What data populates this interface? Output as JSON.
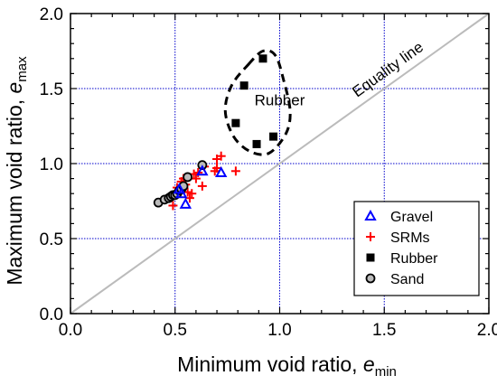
{
  "chart_data": {
    "type": "scatter",
    "xlabel": "Minimum void ratio, ",
    "xlabel_sub": "min",
    "xlabel_italic": "e",
    "ylabel": "Maximum void ratio, ",
    "ylabel_sub": "max",
    "ylabel_italic": "e",
    "xlim": [
      0.0,
      2.0
    ],
    "ylim": [
      0.0,
      2.0
    ],
    "xticks": [
      "0.0",
      "0.5",
      "1.0",
      "1.5",
      "2.0"
    ],
    "yticks": [
      "0.0",
      "0.5",
      "1.0",
      "1.5",
      "2.0"
    ],
    "xtick_values": [
      0.0,
      0.5,
      1.0,
      1.5,
      2.0
    ],
    "ytick_values": [
      0.0,
      0.5,
      1.0,
      1.5,
      2.0
    ],
    "grid": true,
    "grid_color": "#0000cc",
    "legend_position": "bottom-right",
    "equality_line": {
      "label": "Equality line",
      "color": "#bbbbbb",
      "from": [
        0,
        0
      ],
      "to": [
        2,
        2
      ]
    },
    "annotation": {
      "label": "Rubber",
      "at": [
        1.0,
        1.39
      ]
    },
    "series": [
      {
        "name": "Gravel",
        "marker": "open-triangle",
        "color": "#0000ff",
        "points": [
          [
            0.52,
            0.83
          ],
          [
            0.53,
            0.8
          ],
          [
            0.55,
            0.73
          ],
          [
            0.63,
            0.95
          ],
          [
            0.72,
            0.94
          ]
        ]
      },
      {
        "name": "SRMs",
        "marker": "plus",
        "color": "#ff0000",
        "points": [
          [
            0.49,
            0.72
          ],
          [
            0.5,
            0.79
          ],
          [
            0.51,
            0.84
          ],
          [
            0.53,
            0.88
          ],
          [
            0.54,
            0.9
          ],
          [
            0.55,
            0.86
          ],
          [
            0.56,
            0.81
          ],
          [
            0.57,
            0.77
          ],
          [
            0.58,
            0.8
          ],
          [
            0.59,
            0.93
          ],
          [
            0.6,
            0.9
          ],
          [
            0.61,
            0.94
          ],
          [
            0.63,
            0.85
          ],
          [
            0.64,
            0.98
          ],
          [
            0.69,
            0.95
          ],
          [
            0.7,
            0.97
          ],
          [
            0.7,
            1.03
          ],
          [
            0.72,
            1.05
          ],
          [
            0.79,
            0.95
          ]
        ]
      },
      {
        "name": "Rubber",
        "marker": "filled-square",
        "color": "#000000",
        "points": [
          [
            0.79,
            1.27
          ],
          [
            0.83,
            1.52
          ],
          [
            0.89,
            1.13
          ],
          [
            0.92,
            1.7
          ],
          [
            0.97,
            1.18
          ]
        ]
      },
      {
        "name": "Sand",
        "marker": "open-circle",
        "color": "#000000",
        "fill": "#bbbbbb",
        "points": [
          [
            0.42,
            0.74
          ],
          [
            0.45,
            0.76
          ],
          [
            0.47,
            0.77
          ],
          [
            0.48,
            0.78
          ],
          [
            0.49,
            0.79
          ],
          [
            0.5,
            0.79
          ],
          [
            0.51,
            0.8
          ],
          [
            0.52,
            0.82
          ],
          [
            0.53,
            0.83
          ],
          [
            0.54,
            0.85
          ],
          [
            0.56,
            0.91
          ],
          [
            0.63,
            0.99
          ]
        ]
      }
    ]
  }
}
